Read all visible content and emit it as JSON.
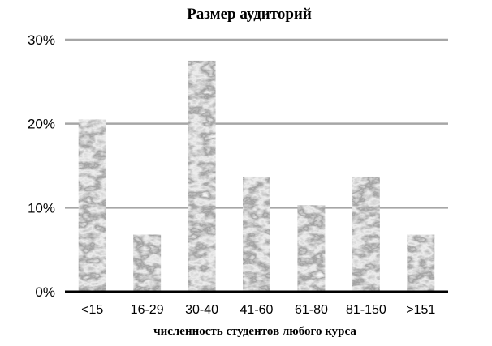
{
  "chart_data": {
    "type": "bar",
    "title": "Размер аудиторий",
    "xlabel": "численность студентов любого курса",
    "ylabel": "",
    "categories": [
      "<15",
      "16-29",
      "30-40",
      "41-60",
      "61-80",
      "81-150",
      ">151"
    ],
    "values": [
      20.5,
      6.8,
      27.5,
      13.7,
      10.3,
      13.7,
      6.8
    ],
    "ylim": [
      0,
      30
    ],
    "yticks": [
      0,
      10,
      20,
      30
    ],
    "ytick_labels": [
      "0%",
      "10%",
      "20%",
      "30%"
    ],
    "grid": true,
    "legend": "none",
    "bar_fill": "stone texture (grey marble)",
    "colors": {
      "grid": "#a6a6a6",
      "axis": "#000000",
      "bar_dark": "#3a3a3a",
      "bar_mid": "#8c8c8c",
      "bar_light": "#d2d2d2"
    }
  }
}
